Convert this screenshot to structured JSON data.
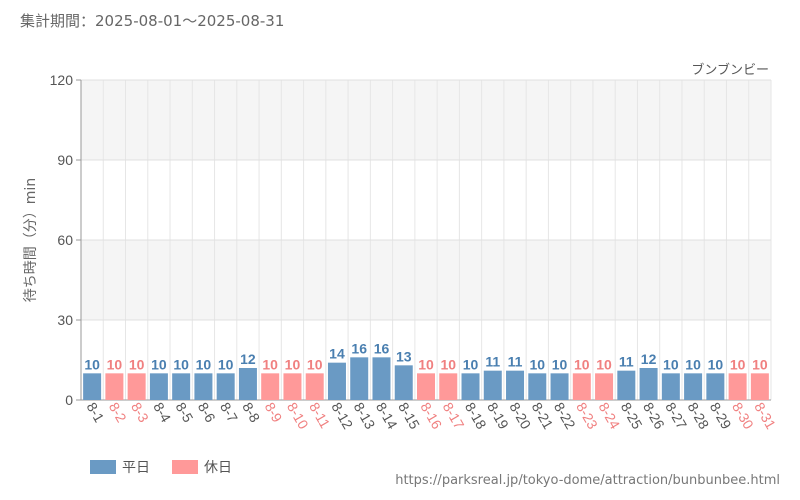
{
  "header": {
    "period_label": "集計期間：",
    "period": "2025-08-01～2025-08-31"
  },
  "chart_data": {
    "type": "bar",
    "title": "ブンブンビー",
    "ylabel": "待ち時間（分）min",
    "xlabel": "",
    "ylim": [
      0,
      120
    ],
    "yticks": [
      0,
      30,
      60,
      90,
      120
    ],
    "grid": true,
    "legend_position": "bottom-left",
    "categories": [
      "8-1",
      "8-2",
      "8-3",
      "8-4",
      "8-5",
      "8-6",
      "8-7",
      "8-8",
      "8-9",
      "8-10",
      "8-11",
      "8-12",
      "8-13",
      "8-14",
      "8-15",
      "8-16",
      "8-17",
      "8-18",
      "8-19",
      "8-20",
      "8-21",
      "8-22",
      "8-23",
      "8-24",
      "8-25",
      "8-26",
      "8-27",
      "8-28",
      "8-29",
      "8-30",
      "8-31"
    ],
    "values": [
      10,
      10,
      10,
      10,
      10,
      10,
      10,
      12,
      10,
      10,
      10,
      14,
      16,
      16,
      13,
      10,
      10,
      10,
      11,
      11,
      10,
      10,
      10,
      10,
      11,
      12,
      10,
      10,
      10,
      10,
      10
    ],
    "day_type": [
      "weekday",
      "holiday",
      "holiday",
      "weekday",
      "weekday",
      "weekday",
      "weekday",
      "weekday",
      "holiday",
      "holiday",
      "holiday",
      "weekday",
      "weekday",
      "weekday",
      "weekday",
      "holiday",
      "holiday",
      "weekday",
      "weekday",
      "weekday",
      "weekday",
      "weekday",
      "holiday",
      "holiday",
      "weekday",
      "weekday",
      "weekday",
      "weekday",
      "weekday",
      "holiday",
      "holiday"
    ],
    "series": [
      {
        "name": "平日",
        "key": "weekday",
        "color": "#6a9ac4",
        "label_color": "#4a7fb0"
      },
      {
        "name": "休日",
        "key": "holiday",
        "color": "#ff9999",
        "label_color": "#f08080"
      }
    ]
  },
  "footer": {
    "source_url": "https://parksreal.jp/tokyo-dome/attraction/bunbunbee.html"
  }
}
